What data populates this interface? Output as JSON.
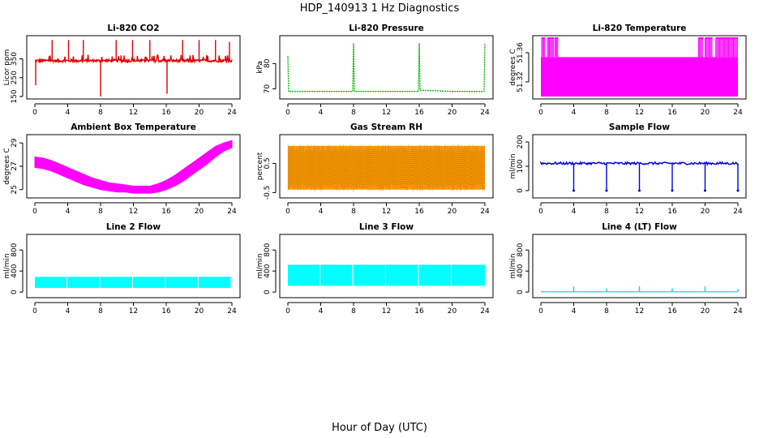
{
  "figure": {
    "title": "HDP_140913 1 Hz Diagnostics",
    "xlabel": "Hour of Day (UTC)"
  },
  "chart_data": [
    {
      "id": "co2",
      "type": "line",
      "title": "Li-820 CO2",
      "ylabel": "Licor ppm",
      "xlim": [
        0,
        24
      ],
      "ylim": [
        150,
        460
      ],
      "xticks": [
        0,
        4,
        8,
        12,
        16,
        20,
        24
      ],
      "yticks": [
        150,
        250,
        350
      ],
      "ytick_labels": [
        "150",
        "250",
        "350"
      ],
      "color": "#e00000",
      "series": [
        {
          "x": [
            0,
            0.1,
            0.2,
            0.5,
            1.0,
            1.5,
            2.0,
            2.5,
            3.0,
            3.5,
            4.0,
            4.5,
            5.0,
            5.5,
            6.0,
            6.5,
            7.0,
            7.5,
            8.0,
            8.5,
            9.0,
            9.5,
            10.0,
            10.5,
            11.0,
            11.5,
            12.0,
            12.5,
            13.0,
            13.5,
            14.0,
            14.5,
            15.0,
            15.5,
            16.0,
            16.5,
            17.0,
            17.5,
            18.0,
            18.5,
            19.0,
            19.5,
            20.0,
            20.5,
            21.0,
            21.5,
            22.0,
            22.5,
            23.0,
            23.5,
            24.0
          ],
          "y": [
            355,
            210,
            345,
            340,
            338,
            342,
            340,
            338,
            341,
            339,
            340,
            342,
            339,
            341,
            340,
            338,
            342,
            340,
            339,
            341,
            340,
            339,
            341,
            340,
            338,
            342,
            340,
            339,
            341,
            340,
            339,
            342,
            340,
            338,
            341,
            340,
            339,
            341,
            340,
            342,
            339,
            340,
            341,
            339,
            340,
            342,
            340,
            339,
            341,
            340,
            338
          ]
        }
      ],
      "spikes": [
        {
          "x": 0.1,
          "y": 210
        },
        {
          "x": 2.1,
          "y": 450
        },
        {
          "x": 4.1,
          "y": 450
        },
        {
          "x": 5.9,
          "y": 450
        },
        {
          "x": 8.0,
          "y": 150
        },
        {
          "x": 9.9,
          "y": 450
        },
        {
          "x": 11.9,
          "y": 450
        },
        {
          "x": 14.0,
          "y": 450
        },
        {
          "x": 16.1,
          "y": 165
        },
        {
          "x": 18.0,
          "y": 450
        },
        {
          "x": 20.0,
          "y": 450
        },
        {
          "x": 22.0,
          "y": 450
        },
        {
          "x": 23.7,
          "y": 440
        }
      ]
    },
    {
      "id": "pressure",
      "type": "line",
      "title": "Li-820 Pressure",
      "ylabel": "kPa",
      "xlim": [
        0,
        24
      ],
      "ylim": [
        67,
        90
      ],
      "xticks": [
        0,
        4,
        8,
        12,
        16,
        20,
        24
      ],
      "yticks": [
        70,
        80
      ],
      "ytick_labels": [
        "70",
        "80"
      ],
      "color": "#00b000",
      "series": [
        {
          "x": [
            0,
            0.1,
            0.3,
            4,
            7.9,
            8.0,
            8.1,
            12,
            15.9,
            16.0,
            16.1,
            20,
            23.9,
            24.0
          ],
          "y": [
            83,
            69,
            69,
            69,
            69,
            88,
            69,
            69,
            69,
            88,
            69.5,
            69,
            69,
            88
          ]
        }
      ]
    },
    {
      "id": "temperature",
      "type": "area",
      "title": "Li-820 Temperature",
      "ylabel": "degrees C",
      "xlim": [
        0,
        24
      ],
      "ylim": [
        51.3,
        51.38
      ],
      "xticks": [
        0,
        4,
        8,
        12,
        16,
        20,
        24
      ],
      "yticks": [
        51.32,
        51.36
      ],
      "ytick_labels": [
        "51.32",
        "51.36"
      ],
      "color": "#ff00ff",
      "band_low": 51.3,
      "band_high": 51.354,
      "high_level": 51.38,
      "high_spans": [
        [
          0.1,
          0.5
        ],
        [
          0.8,
          1.6
        ],
        [
          1.7,
          2.1
        ],
        [
          19.2,
          19.8
        ],
        [
          20.0,
          20.9
        ],
        [
          21.3,
          24.0
        ]
      ]
    },
    {
      "id": "box_temp",
      "type": "area",
      "title": "Ambient Box Temperature",
      "ylabel": "degrees C",
      "xlim": [
        0,
        24
      ],
      "ylim": [
        24.5,
        29.5
      ],
      "xticks": [
        0,
        4,
        8,
        12,
        16,
        20,
        24
      ],
      "yticks": [
        25,
        27,
        29
      ],
      "ytick_labels": [
        "25",
        "27",
        "29"
      ],
      "color": "#ff00ff",
      "series": [
        {
          "x": [
            0,
            1,
            2,
            3,
            4,
            5,
            6,
            7,
            8,
            9,
            10,
            11,
            12,
            13,
            14,
            15,
            16,
            17,
            18,
            19,
            20,
            21,
            22,
            23,
            24
          ],
          "low": [
            26.9,
            26.8,
            26.6,
            26.3,
            26.0,
            25.7,
            25.4,
            25.2,
            25.0,
            24.9,
            24.8,
            24.8,
            24.7,
            24.7,
            24.7,
            24.8,
            25.0,
            25.3,
            25.7,
            26.2,
            26.7,
            27.2,
            27.8,
            28.3,
            28.6
          ],
          "high": [
            27.8,
            27.7,
            27.5,
            27.2,
            26.9,
            26.6,
            26.3,
            26.0,
            25.8,
            25.6,
            25.5,
            25.4,
            25.3,
            25.3,
            25.3,
            25.5,
            25.8,
            26.2,
            26.7,
            27.2,
            27.7,
            28.2,
            28.7,
            29.0,
            29.2
          ]
        }
      ]
    },
    {
      "id": "rh",
      "type": "area",
      "title": "Gas Stream RH",
      "ylabel": "percent",
      "xlim": [
        0,
        24
      ],
      "ylim": [
        -0.6,
        1.4
      ],
      "xticks": [
        0,
        4,
        8,
        12,
        16,
        20,
        24
      ],
      "yticks": [
        -0.5,
        0.5
      ],
      "ytick_labels": [
        "-0.5",
        "0.5"
      ],
      "color": "#ff9900",
      "dot_color": "#996600",
      "band_low": -0.45,
      "band_high": 1.15
    },
    {
      "id": "sample_flow",
      "type": "line",
      "title": "Sample Flow",
      "ylabel": "ml/min",
      "xlim": [
        0,
        24
      ],
      "ylim": [
        -20,
        220
      ],
      "xticks": [
        0,
        4,
        8,
        12,
        16,
        20,
        24
      ],
      "yticks": [
        0,
        100,
        200
      ],
      "ytick_labels": [
        "0",
        "100",
        "200"
      ],
      "color": "#0000e0",
      "base_level": 112,
      "dips": [
        4.0,
        8.0,
        12.0,
        16.0,
        20.0,
        24.0
      ],
      "dip_level": 0
    },
    {
      "id": "line2",
      "type": "area",
      "title": "Line 2 Flow",
      "ylabel": "ml/min",
      "xlim": [
        0,
        24
      ],
      "ylim": [
        -60,
        1050
      ],
      "xticks": [
        0,
        4,
        8,
        12,
        16,
        20,
        24
      ],
      "yticks": [
        0,
        400,
        800
      ],
      "ytick_labels": [
        "0",
        "400",
        "800"
      ],
      "color": "#00ffff",
      "band_low": 80,
      "band_high": 290,
      "breaks": [
        3.9,
        7.9,
        11.9,
        15.9,
        19.9,
        23.9
      ]
    },
    {
      "id": "line3",
      "type": "area",
      "title": "Line 3 Flow",
      "ylabel": "ml/min",
      "xlim": [
        0,
        24
      ],
      "ylim": [
        -60,
        1050
      ],
      "xticks": [
        0,
        4,
        8,
        12,
        16,
        20,
        24
      ],
      "yticks": [
        0,
        400,
        800
      ],
      "ytick_labels": [
        "0",
        "400",
        "800"
      ],
      "color": "#00ffff",
      "band_low": 120,
      "band_high": 520,
      "breaks": [
        3.9,
        7.9,
        11.9,
        15.9,
        19.9
      ]
    },
    {
      "id": "line4",
      "type": "line",
      "title": "Line 4 (LT) Flow",
      "ylabel": "ml/min",
      "xlim": [
        0,
        24
      ],
      "ylim": [
        -60,
        1050
      ],
      "xticks": [
        0,
        4,
        8,
        12,
        16,
        20,
        24
      ],
      "yticks": [
        0,
        400,
        800
      ],
      "ytick_labels": [
        "0",
        "400",
        "800"
      ],
      "color": "#00e0e0",
      "base_level": 5,
      "spikes": [
        {
          "x": 4.0,
          "y": 110
        },
        {
          "x": 8.0,
          "y": 70
        },
        {
          "x": 12.0,
          "y": 110
        },
        {
          "x": 16.0,
          "y": 70
        },
        {
          "x": 20.0,
          "y": 110
        },
        {
          "x": 24.0,
          "y": 60
        }
      ]
    }
  ]
}
